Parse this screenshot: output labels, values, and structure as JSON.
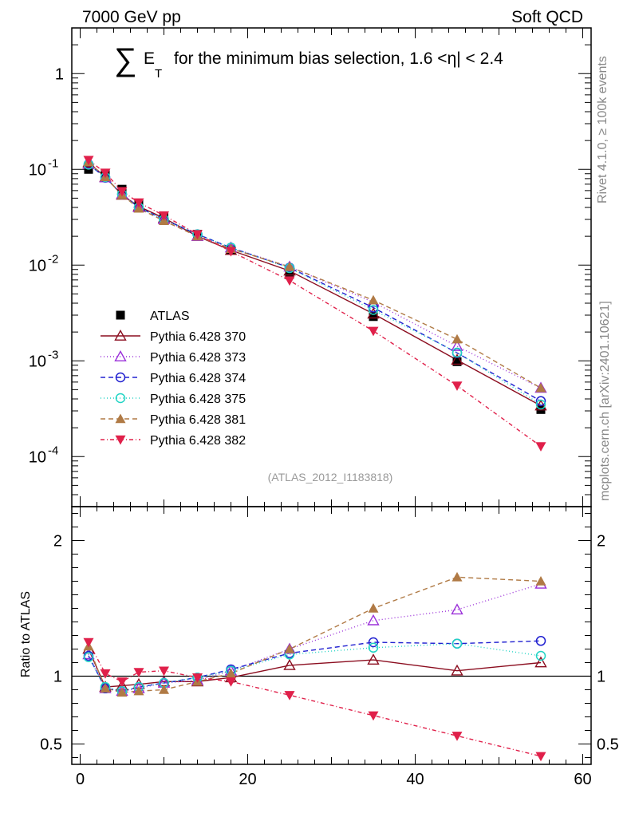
{
  "header": {
    "left": "7000 GeV pp",
    "right": "Soft QCD"
  },
  "title": {
    "symbol": "∑",
    "e": "E",
    "sub": "T",
    "text": "for the minimum bias selection, 1.6 <η| < 2.4"
  },
  "side_labels": {
    "rivet": "Rivet 4.1.0, ≥ 100k events",
    "mcplots": "mcplots.cern.ch [arXiv:2401.10621]"
  },
  "analysis_id": "(ATLAS_2012_I1183818)",
  "chart_data": [
    {
      "type": "line",
      "name": "main",
      "yscale": "log",
      "xlim": [
        -1,
        61
      ],
      "ylim": [
        3e-05,
        3
      ],
      "ytick_labels": [
        "10^-4",
        "10^-3",
        "10^-2",
        "10^-1",
        "1"
      ],
      "x": [
        1,
        3,
        5,
        7,
        10,
        14,
        18,
        25,
        35,
        45,
        55
      ],
      "series": [
        {
          "name": "ATLAS",
          "label": "ATLAS",
          "color": "#000000",
          "marker": "square",
          "dash": "none",
          "values": [
            0.1,
            0.09,
            0.062,
            0.044,
            0.032,
            0.021,
            0.0145,
            0.008,
            0.0029,
            0.00098,
            0.00031
          ]
        },
        {
          "name": "p370",
          "label": "Pythia 6.428 370",
          "color": "#8b0d1f",
          "marker": "tri-up-open",
          "dash": "none",
          "values": [
            0.118,
            0.083,
            0.054,
            0.041,
            0.031,
            0.02,
            0.0143,
            0.0087,
            0.0031,
            0.00102,
            0.00034
          ]
        },
        {
          "name": "p373",
          "label": "Pythia 6.428 373",
          "color": "#9b30d9",
          "marker": "tri-up-open",
          "dash": "1,3",
          "values": [
            0.114,
            0.082,
            0.055,
            0.04,
            0.03,
            0.02,
            0.0152,
            0.0096,
            0.0041,
            0.00142,
            0.00052
          ]
        },
        {
          "name": "p374",
          "label": "Pythia 6.428 374",
          "color": "#2020d0",
          "marker": "circle-open",
          "dash": "6,4",
          "values": [
            0.113,
            0.082,
            0.055,
            0.04,
            0.03,
            0.021,
            0.0152,
            0.0094,
            0.0036,
            0.00121,
            0.00038
          ]
        },
        {
          "name": "p375",
          "label": "Pythia 6.428 375",
          "color": "#20d4c4",
          "marker": "circle-open",
          "dash": "1,3",
          "values": [
            0.112,
            0.083,
            0.055,
            0.04,
            0.03,
            0.021,
            0.0152,
            0.0093,
            0.0034,
            0.00122,
            0.00035
          ]
        },
        {
          "name": "p381",
          "label": "Pythia 6.428 381",
          "color": "#b07a45",
          "marker": "tri-up",
          "dash": "6,4",
          "values": [
            0.119,
            0.083,
            0.054,
            0.039,
            0.029,
            0.02,
            0.0148,
            0.0096,
            0.0043,
            0.00168,
            0.00052
          ]
        },
        {
          "name": "p382",
          "label": "Pythia 6.428 382",
          "color": "#e0204a",
          "marker": "tri-down",
          "dash": "5,3,1,3",
          "values": [
            0.125,
            0.092,
            0.059,
            0.045,
            0.033,
            0.021,
            0.0139,
            0.0069,
            0.00205,
            0.00055,
            0.000128
          ]
        }
      ]
    },
    {
      "type": "line",
      "name": "ratio",
      "ylabel": "Ratio to ATLAS",
      "xlim": [
        -1,
        61
      ],
      "ylim": [
        0.35,
        2.25
      ],
      "xtick_labels": [
        "0",
        "20",
        "40",
        "60"
      ],
      "ytick_labels": [
        "0.5",
        "1",
        "2"
      ],
      "reference": 1.0,
      "x": [
        1,
        3,
        5,
        7,
        10,
        14,
        18,
        25,
        35,
        45,
        55
      ],
      "series": [
        {
          "name": "p370",
          "values": [
            1.2,
            0.92,
            0.93,
            0.94,
            0.96,
            0.96,
            0.99,
            1.08,
            1.12,
            1.04,
            1.1
          ]
        },
        {
          "name": "p373",
          "values": [
            1.16,
            0.91,
            0.89,
            0.91,
            0.95,
            0.97,
            1.04,
            1.2,
            1.41,
            1.49,
            1.68
          ]
        },
        {
          "name": "p374",
          "values": [
            1.15,
            0.91,
            0.89,
            0.92,
            0.95,
            0.99,
            1.05,
            1.17,
            1.25,
            1.24,
            1.26
          ]
        },
        {
          "name": "p375",
          "values": [
            1.14,
            0.92,
            0.89,
            0.92,
            0.95,
            0.99,
            1.04,
            1.16,
            1.21,
            1.24,
            1.15
          ]
        },
        {
          "name": "p381",
          "values": [
            1.22,
            0.91,
            0.88,
            0.89,
            0.9,
            0.96,
            1.02,
            1.2,
            1.5,
            1.73,
            1.7
          ]
        },
        {
          "name": "p382",
          "values": [
            1.25,
            1.02,
            0.96,
            1.03,
            1.04,
            0.99,
            0.96,
            0.86,
            0.71,
            0.56,
            0.41
          ]
        }
      ]
    }
  ]
}
